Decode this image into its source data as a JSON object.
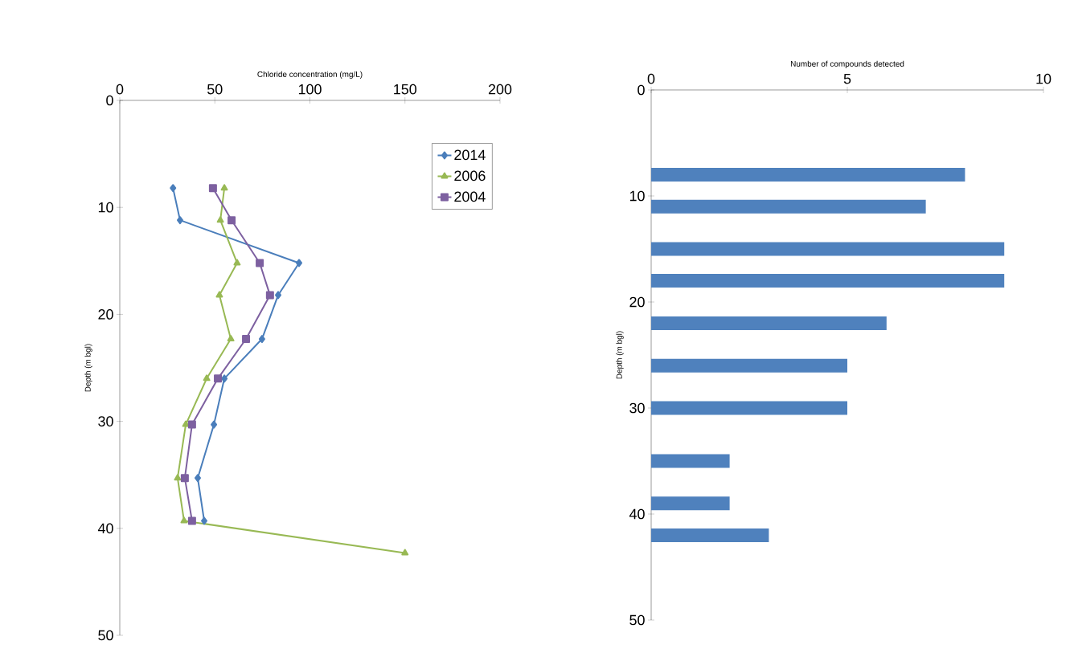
{
  "chart_data": [
    {
      "type": "line",
      "xlabel": "Chloride concentration (mg/L)",
      "ylabel": "Depth (m bgl)",
      "xlim": [
        0,
        200
      ],
      "xticks": [
        0,
        50,
        100,
        150,
        200
      ],
      "ylim": [
        50,
        0
      ],
      "yticks": [
        0,
        10,
        20,
        30,
        40,
        50
      ],
      "legend": "top right",
      "series": [
        {
          "name": "2014",
          "color": "#4a7ebb",
          "marker": "diamond",
          "x": [
            28,
            31.7,
            94.3,
            83.3,
            74.8,
            55,
            49.5,
            41,
            44.4
          ],
          "values": [
            8.2,
            11.2,
            15.2,
            18.2,
            22.3,
            26.0,
            30.3,
            35.3,
            39.3
          ]
        },
        {
          "name": "2006",
          "color": "#98b954",
          "marker": "triangle",
          "x": [
            55,
            52.9,
            61.7,
            52.4,
            58.4,
            45.7,
            34.7,
            30.4,
            33.8,
            150
          ],
          "values": [
            8.2,
            11.2,
            15.2,
            18.2,
            22.3,
            26.0,
            30.3,
            35.3,
            39.3,
            42.3
          ]
        },
        {
          "name": "2004",
          "color": "#7d60a0",
          "marker": "square",
          "x": [
            49,
            58.8,
            73.6,
            79,
            66.4,
            51.6,
            38,
            34.2,
            38
          ],
          "values": [
            8.2,
            11.2,
            15.2,
            18.2,
            22.3,
            26.0,
            30.3,
            35.3,
            39.3
          ]
        }
      ]
    },
    {
      "type": "bar",
      "orientation": "horizontal",
      "xlabel": "Number of compounds detected",
      "ylabel": "Depth (m bgl)",
      "xlim": [
        0,
        10
      ],
      "xticks": [
        0,
        5,
        10
      ],
      "ylim": [
        50,
        0
      ],
      "yticks": [
        0,
        10,
        20,
        30,
        40,
        50
      ],
      "color": "#4f81bd",
      "x": [
        8,
        11,
        15,
        18,
        22,
        26,
        30,
        35,
        39,
        42
      ],
      "values": [
        8,
        7,
        9,
        9,
        6,
        5,
        5,
        2,
        2,
        3
      ]
    }
  ]
}
